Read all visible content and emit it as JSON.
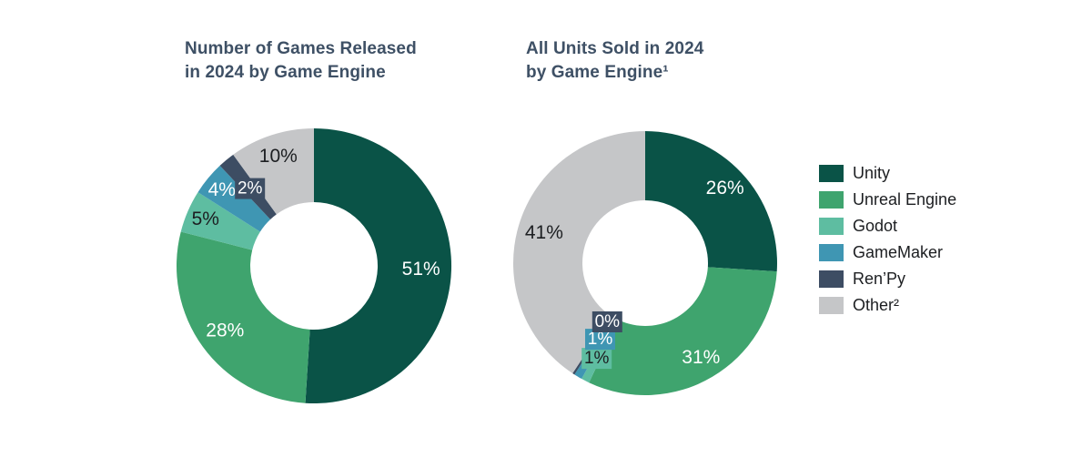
{
  "page": {
    "background": "#ffffff"
  },
  "palette": {
    "unity": "#0a5347",
    "unreal": "#3fa46e",
    "godot": "#5ebda1",
    "gamemaker": "#3f96b3",
    "renpy": "#3d4d63",
    "other": "#c5c6c8",
    "title_text": "#3e5065",
    "dark_label": "#1c1e21",
    "light_label": "#ffffff"
  },
  "legend": {
    "position": "right",
    "items": [
      {
        "id": "unity",
        "label": "Unity"
      },
      {
        "id": "unreal",
        "label": "Unreal Engine"
      },
      {
        "id": "godot",
        "label": "Godot"
      },
      {
        "id": "gamemaker",
        "label": "GameMaker"
      },
      {
        "id": "renpy",
        "label": "Ren’Py"
      },
      {
        "id": "other",
        "label": "Other²"
      }
    ]
  },
  "chart_data": [
    {
      "type": "pie",
      "subtype": "donut",
      "title": "Number of Games Released\nin 2024 by Game Engine",
      "categories": [
        "Unity",
        "Unreal Engine",
        "Godot",
        "GameMaker",
        "Ren’Py",
        "Other"
      ],
      "color_ids": [
        "unity",
        "unreal",
        "godot",
        "gamemaker",
        "renpy",
        "other"
      ],
      "values": [
        51,
        28,
        5,
        4,
        2,
        10
      ],
      "unit": "%",
      "data_labels": [
        "51%",
        "28%",
        "5%",
        "4%",
        "2%",
        "10%"
      ],
      "start_angle_deg": 0,
      "direction": "clockwise",
      "label_layout": [
        {
          "style": "plain",
          "color": "light",
          "r": 0.78
        },
        {
          "style": "plain",
          "color": "light",
          "r": 0.8
        },
        {
          "style": "plain",
          "color": "dark",
          "r": 0.86
        },
        {
          "style": "plain",
          "color": "light",
          "r": 0.87
        },
        {
          "style": "box",
          "color": "light",
          "r": 0.73
        },
        {
          "style": "plain",
          "color": "dark",
          "r": 0.84
        }
      ]
    },
    {
      "type": "pie",
      "subtype": "donut",
      "title": "All Units Sold in 2024\nby Game Engine¹",
      "categories": [
        "Unity",
        "Unreal Engine",
        "Godot",
        "GameMaker",
        "Ren’Py",
        "Other"
      ],
      "color_ids": [
        "unity",
        "unreal",
        "godot",
        "gamemaker",
        "renpy",
        "other"
      ],
      "values": [
        26,
        31,
        1,
        1,
        0,
        41
      ],
      "unit": "%",
      "data_labels": [
        "26%",
        "31%",
        "1%",
        "1%",
        "0%",
        "41%"
      ],
      "start_angle_deg": 0,
      "direction": "clockwise",
      "label_layout": [
        {
          "style": "plain",
          "color": "light",
          "r": 0.83
        },
        {
          "style": "plain",
          "color": "light",
          "r": 0.83
        },
        {
          "style": "box",
          "color": "dark",
          "r": 0.81
        },
        {
          "style": "box",
          "color": "light",
          "r": 0.67
        },
        {
          "style": "box",
          "color": "light",
          "r": 0.53
        },
        {
          "style": "plain",
          "color": "dark",
          "r": 0.8
        }
      ]
    }
  ]
}
